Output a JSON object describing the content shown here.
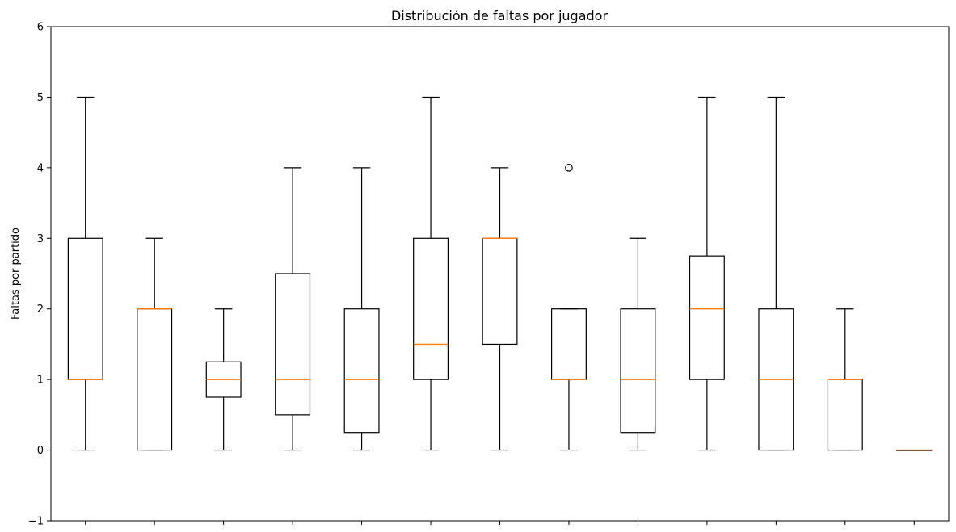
{
  "chart_data": {
    "type": "box",
    "title": "Distribución de faltas por jugador",
    "xlabel": "",
    "ylabel": "Faltas por partido",
    "ylim": [
      -1,
      6
    ],
    "yticks": [
      -1,
      0,
      1,
      2,
      3,
      4,
      5,
      6
    ],
    "grid": false,
    "colors": {
      "box": "#000000",
      "median": "#ff7f0e"
    },
    "boxes": [
      {
        "whislo": 0,
        "q1": 1,
        "med": 1,
        "q3": 3,
        "whishi": 5,
        "fliers": []
      },
      {
        "whislo": 0,
        "q1": 0,
        "med": 2,
        "q3": 2,
        "whishi": 3,
        "fliers": []
      },
      {
        "whislo": 0,
        "q1": 0.75,
        "med": 1,
        "q3": 1.25,
        "whishi": 2,
        "fliers": []
      },
      {
        "whislo": 0,
        "q1": 0.5,
        "med": 1,
        "q3": 2.5,
        "whishi": 4,
        "fliers": []
      },
      {
        "whislo": 0,
        "q1": 0.25,
        "med": 1,
        "q3": 2,
        "whishi": 4,
        "fliers": []
      },
      {
        "whislo": 0,
        "q1": 1,
        "med": 1.5,
        "q3": 3,
        "whishi": 5,
        "fliers": []
      },
      {
        "whislo": 0,
        "q1": 1.5,
        "med": 3,
        "q3": 3,
        "whishi": 4,
        "fliers": []
      },
      {
        "whislo": 0,
        "q1": 1,
        "med": 1,
        "q3": 2,
        "whishi": 2,
        "fliers": [
          4
        ]
      },
      {
        "whislo": 0,
        "q1": 0.25,
        "med": 1,
        "q3": 2,
        "whishi": 3,
        "fliers": []
      },
      {
        "whislo": 0,
        "q1": 1,
        "med": 2,
        "q3": 2.75,
        "whishi": 5,
        "fliers": []
      },
      {
        "whislo": 0,
        "q1": 0,
        "med": 1,
        "q3": 2,
        "whishi": 5,
        "fliers": []
      },
      {
        "whislo": 0,
        "q1": 0,
        "med": 1,
        "q3": 1,
        "whishi": 2,
        "fliers": []
      },
      {
        "whislo": 0,
        "q1": 0,
        "med": 0,
        "q3": 0,
        "whishi": 0,
        "fliers": []
      }
    ]
  }
}
